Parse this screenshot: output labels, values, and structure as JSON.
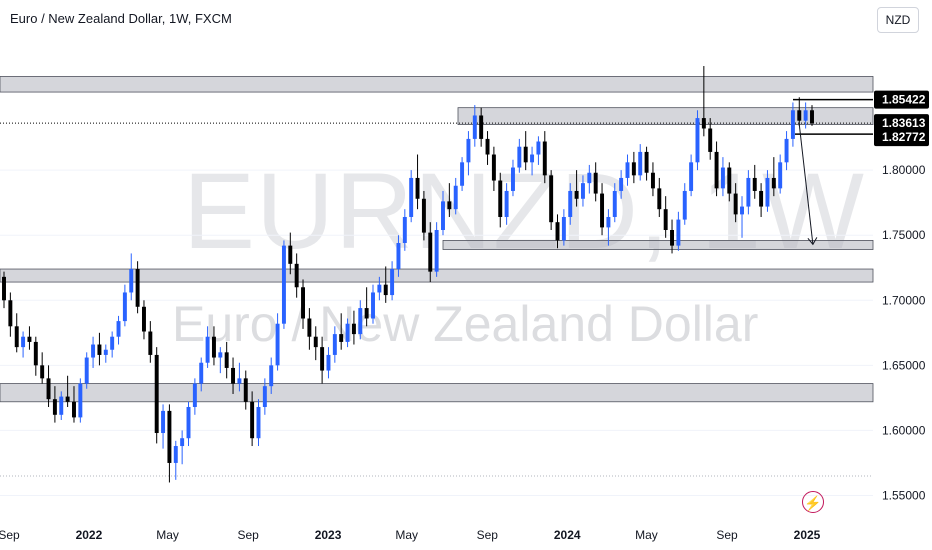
{
  "header": {
    "title": "Euro / New Zealand Dollar, 1W, FXCM",
    "currency_button": "NZD"
  },
  "watermark": {
    "symbol": "EURNZD, 1W",
    "name": "Euro / New Zealand Dollar"
  },
  "colors": {
    "up": "#2962ff",
    "down": "#000000",
    "zone_fill": "#b2b5be",
    "price_label_bg": "#000000",
    "grid": "#f0f3fa"
  },
  "icons": {
    "alert": "flash-icon"
  },
  "chart_data": {
    "type": "candlestick",
    "timeframe": "1W",
    "x_ticks": [
      {
        "label": "Sep",
        "date": "2021-09",
        "bold": false
      },
      {
        "label": "2022",
        "date": "2022-01",
        "bold": true
      },
      {
        "label": "May",
        "date": "2022-05",
        "bold": false
      },
      {
        "label": "Sep",
        "date": "2022-09",
        "bold": false
      },
      {
        "label": "2023",
        "date": "2023-01",
        "bold": true
      },
      {
        "label": "May",
        "date": "2023-05",
        "bold": false
      },
      {
        "label": "Sep",
        "date": "2023-09",
        "bold": false
      },
      {
        "label": "2024",
        "date": "2024-01",
        "bold": true
      },
      {
        "label": "May",
        "date": "2024-05",
        "bold": false
      },
      {
        "label": "Sep",
        "date": "2024-09",
        "bold": false
      },
      {
        "label": "2025",
        "date": "2025-01",
        "bold": true
      }
    ],
    "y_ticks": [
      "1.55000",
      "1.60000",
      "1.65000",
      "1.70000",
      "1.75000",
      "1.80000"
    ],
    "ylim": [
      1.535,
      1.9
    ],
    "price_labels": [
      {
        "value": "1.85422"
      },
      {
        "value": "1.83613"
      },
      {
        "value": "1.82772"
      }
    ],
    "zones": [
      {
        "low": 1.86,
        "high": 1.872
      },
      {
        "low": 1.835,
        "high": 1.848
      },
      {
        "low": 1.739,
        "high": 1.746
      },
      {
        "low": 1.714,
        "high": 1.724
      },
      {
        "low": 1.622,
        "high": 1.636
      }
    ],
    "projection": {
      "from_date": "2024-12-20",
      "from": 1.836,
      "to_date": "2025-01-10",
      "to": 1.743
    },
    "candles": [
      [
        1.718,
        1.722,
        1.694,
        1.7
      ],
      [
        1.7,
        1.706,
        1.672,
        1.68
      ],
      [
        1.68,
        1.69,
        1.66,
        1.664
      ],
      [
        1.664,
        1.676,
        1.656,
        1.672
      ],
      [
        1.672,
        1.68,
        1.662,
        1.668
      ],
      [
        1.668,
        1.672,
        1.642,
        1.65
      ],
      [
        1.65,
        1.66,
        1.636,
        1.64
      ],
      [
        1.64,
        1.65,
        1.618,
        1.624
      ],
      [
        1.624,
        1.634,
        1.606,
        1.612
      ],
      [
        1.612,
        1.63,
        1.608,
        1.626
      ],
      [
        1.626,
        1.642,
        1.618,
        1.622
      ],
      [
        1.622,
        1.634,
        1.606,
        1.61
      ],
      [
        1.61,
        1.64,
        1.606,
        1.636
      ],
      [
        1.636,
        1.66,
        1.632,
        1.656
      ],
      [
        1.656,
        1.672,
        1.648,
        1.666
      ],
      [
        1.666,
        1.675,
        1.65,
        1.658
      ],
      [
        1.658,
        1.666,
        1.652,
        1.662
      ],
      [
        1.662,
        1.676,
        1.656,
        1.672
      ],
      [
        1.672,
        1.688,
        1.666,
        1.684
      ],
      [
        1.684,
        1.712,
        1.68,
        1.706
      ],
      [
        1.706,
        1.736,
        1.7,
        1.724
      ],
      [
        1.724,
        1.73,
        1.69,
        1.695
      ],
      [
        1.695,
        1.7,
        1.67,
        1.676
      ],
      [
        1.676,
        1.684,
        1.652,
        1.658
      ],
      [
        1.658,
        1.664,
        1.59,
        1.598
      ],
      [
        1.598,
        1.62,
        1.586,
        1.615
      ],
      [
        1.615,
        1.62,
        1.56,
        1.575
      ],
      [
        1.575,
        1.592,
        1.562,
        1.588
      ],
      [
        1.588,
        1.6,
        1.574,
        1.594
      ],
      [
        1.594,
        1.622,
        1.588,
        1.618
      ],
      [
        1.618,
        1.64,
        1.612,
        1.636
      ],
      [
        1.636,
        1.656,
        1.63,
        1.652
      ],
      [
        1.652,
        1.68,
        1.648,
        1.672
      ],
      [
        1.672,
        1.68,
        1.65,
        1.656
      ],
      [
        1.656,
        1.664,
        1.644,
        1.66
      ],
      [
        1.66,
        1.668,
        1.64,
        1.648
      ],
      [
        1.648,
        1.656,
        1.628,
        1.636
      ],
      [
        1.636,
        1.652,
        1.63,
        1.64
      ],
      [
        1.64,
        1.646,
        1.616,
        1.622
      ],
      [
        1.622,
        1.63,
        1.588,
        1.594
      ],
      [
        1.594,
        1.624,
        1.588,
        1.618
      ],
      [
        1.618,
        1.64,
        1.612,
        1.634
      ],
      [
        1.634,
        1.656,
        1.628,
        1.65
      ],
      [
        1.65,
        1.69,
        1.646,
        1.682
      ],
      [
        1.682,
        1.746,
        1.678,
        1.742
      ],
      [
        1.742,
        1.752,
        1.72,
        1.728
      ],
      [
        1.728,
        1.736,
        1.702,
        1.71
      ],
      [
        1.71,
        1.716,
        1.678,
        1.686
      ],
      [
        1.686,
        1.694,
        1.662,
        1.672
      ],
      [
        1.672,
        1.68,
        1.654,
        1.664
      ],
      [
        1.664,
        1.672,
        1.636,
        1.646
      ],
      [
        1.646,
        1.664,
        1.64,
        1.658
      ],
      [
        1.658,
        1.68,
        1.652,
        1.674
      ],
      [
        1.674,
        1.69,
        1.662,
        1.668
      ],
      [
        1.668,
        1.686,
        1.664,
        1.682
      ],
      [
        1.682,
        1.692,
        1.666,
        1.674
      ],
      [
        1.674,
        1.7,
        1.67,
        1.694
      ],
      [
        1.694,
        1.71,
        1.68,
        1.686
      ],
      [
        1.686,
        1.712,
        1.682,
        1.706
      ],
      [
        1.706,
        1.718,
        1.7,
        1.712
      ],
      [
        1.712,
        1.726,
        1.698,
        1.704
      ],
      [
        1.704,
        1.73,
        1.7,
        1.724
      ],
      [
        1.724,
        1.75,
        1.718,
        1.744
      ],
      [
        1.744,
        1.77,
        1.738,
        1.764
      ],
      [
        1.764,
        1.8,
        1.76,
        1.794
      ],
      [
        1.794,
        1.812,
        1.77,
        1.778
      ],
      [
        1.778,
        1.784,
        1.746,
        1.752
      ],
      [
        1.752,
        1.76,
        1.714,
        1.722
      ],
      [
        1.722,
        1.76,
        1.718,
        1.754
      ],
      [
        1.754,
        1.784,
        1.75,
        1.776
      ],
      [
        1.776,
        1.79,
        1.764,
        1.77
      ],
      [
        1.77,
        1.794,
        1.766,
        1.788
      ],
      [
        1.788,
        1.81,
        1.784,
        1.806
      ],
      [
        1.806,
        1.83,
        1.796,
        1.824
      ],
      [
        1.824,
        1.85,
        1.818,
        1.842
      ],
      [
        1.842,
        1.848,
        1.818,
        1.824
      ],
      [
        1.824,
        1.83,
        1.804,
        1.812
      ],
      [
        1.812,
        1.818,
        1.784,
        1.792
      ],
      [
        1.792,
        1.798,
        1.756,
        1.764
      ],
      [
        1.764,
        1.79,
        1.758,
        1.784
      ],
      [
        1.784,
        1.808,
        1.78,
        1.802
      ],
      [
        1.802,
        1.824,
        1.798,
        1.818
      ],
      [
        1.818,
        1.83,
        1.8,
        1.806
      ],
      [
        1.806,
        1.818,
        1.796,
        1.812
      ],
      [
        1.812,
        1.826,
        1.804,
        1.822
      ],
      [
        1.822,
        1.83,
        1.79,
        1.796
      ],
      [
        1.796,
        1.8,
        1.754,
        1.76
      ],
      [
        1.76,
        1.766,
        1.74,
        1.746
      ],
      [
        1.746,
        1.77,
        1.742,
        1.764
      ],
      [
        1.764,
        1.79,
        1.758,
        1.784
      ],
      [
        1.784,
        1.8,
        1.772,
        1.778
      ],
      [
        1.778,
        1.796,
        1.772,
        1.79
      ],
      [
        1.79,
        1.804,
        1.782,
        1.798
      ],
      [
        1.798,
        1.806,
        1.776,
        1.782
      ],
      [
        1.782,
        1.79,
        1.75,
        1.756
      ],
      [
        1.756,
        1.77,
        1.742,
        1.764
      ],
      [
        1.764,
        1.79,
        1.76,
        1.784
      ],
      [
        1.784,
        1.8,
        1.778,
        1.794
      ],
      [
        1.794,
        1.812,
        1.788,
        1.806
      ],
      [
        1.806,
        1.814,
        1.79,
        1.796
      ],
      [
        1.796,
        1.82,
        1.792,
        1.814
      ],
      [
        1.814,
        1.818,
        1.792,
        1.798
      ],
      [
        1.798,
        1.806,
        1.78,
        1.786
      ],
      [
        1.786,
        1.794,
        1.764,
        1.77
      ],
      [
        1.77,
        1.78,
        1.748,
        1.754
      ],
      [
        1.754,
        1.762,
        1.736,
        1.742
      ],
      [
        1.742,
        1.768,
        1.738,
        1.762
      ],
      [
        1.762,
        1.79,
        1.758,
        1.784
      ],
      [
        1.784,
        1.812,
        1.78,
        1.806
      ],
      [
        1.806,
        1.846,
        1.8,
        1.84
      ],
      [
        1.84,
        1.88,
        1.826,
        1.832
      ],
      [
        1.832,
        1.84,
        1.808,
        1.814
      ],
      [
        1.814,
        1.822,
        1.78,
        1.786
      ],
      [
        1.786,
        1.81,
        1.78,
        1.802
      ],
      [
        1.802,
        1.806,
        1.776,
        1.782
      ],
      [
        1.782,
        1.79,
        1.76,
        1.766
      ],
      [
        1.766,
        1.78,
        1.748,
        1.772
      ],
      [
        1.772,
        1.8,
        1.766,
        1.794
      ],
      [
        1.794,
        1.804,
        1.778,
        1.784
      ],
      [
        1.784,
        1.79,
        1.764,
        1.772
      ],
      [
        1.772,
        1.8,
        1.768,
        1.794
      ],
      [
        1.794,
        1.81,
        1.78,
        1.786
      ],
      [
        1.786,
        1.812,
        1.782,
        1.806
      ],
      [
        1.806,
        1.83,
        1.8,
        1.824
      ],
      [
        1.824,
        1.852,
        1.818,
        1.846
      ],
      [
        1.846,
        1.856,
        1.834,
        1.838
      ],
      [
        1.838,
        1.852,
        1.832,
        1.846
      ],
      [
        1.846,
        1.85,
        1.834,
        1.836
      ]
    ]
  }
}
